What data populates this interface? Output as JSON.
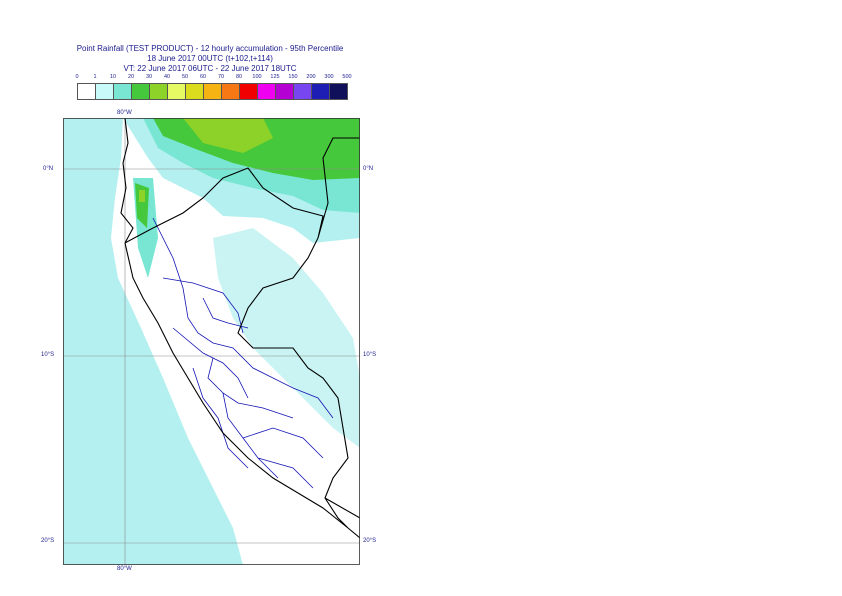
{
  "title": {
    "line1": "Point Rainfall (TEST PRODUCT) - 12 hourly accumulation - 95th Percentile",
    "line2": "18 June 2017 00UTC (t+102,t+114)",
    "line3": "VT: 22 June 2017 06UTC - 22 June 2017 18UTC"
  },
  "legend": {
    "ticks": [
      "0",
      "1",
      "10",
      "20",
      "30",
      "40",
      "50",
      "60",
      "70",
      "80",
      "100",
      "125",
      "150",
      "200",
      "300",
      "500"
    ],
    "colors": [
      "#ffffff",
      "#c8fafa",
      "#78e6d2",
      "#46c83c",
      "#8cd228",
      "#e6fa64",
      "#dcdc1e",
      "#f5b414",
      "#f57814",
      "#f00000",
      "#f000f0",
      "#b400d2",
      "#7846f0",
      "#1e1eb4",
      "#0f0f5a"
    ]
  },
  "map": {
    "lon_labels": {
      "top": "80°W",
      "bottom": "80°W"
    },
    "lat_labels": [
      {
        "left": "0°N",
        "right": "0°N"
      },
      {
        "left": "10°S",
        "right": "10°S"
      },
      {
        "left": "20°S",
        "right": "20°S"
      }
    ],
    "colors": {
      "ocean_rain": "#b4f0f0",
      "light_rain": "#78e6d2",
      "moderate_rain": "#46c83c",
      "heavy_rain": "#8cd228",
      "border_country": "#000000",
      "border_region": "#1414b4",
      "grid": "#8c8c8c"
    }
  }
}
